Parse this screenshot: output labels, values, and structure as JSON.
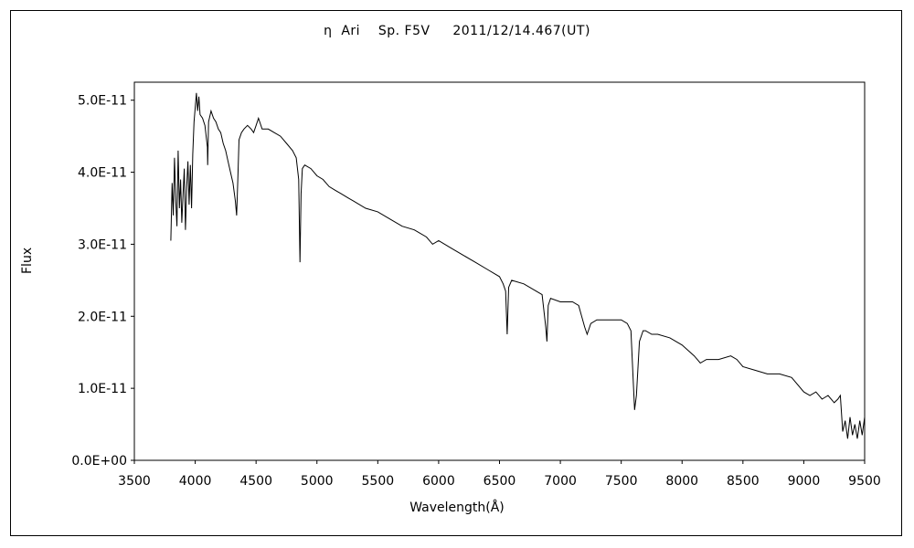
{
  "chart_data": {
    "type": "line",
    "title": "η  Ari    Sp. F5V     2011/12/14.467(UT)",
    "xlabel": "Wavelength(Å)",
    "ylabel": "Flux",
    "xlim": [
      3500,
      9500
    ],
    "ylim": [
      0,
      5.25e-11
    ],
    "x_ticks": [
      3500,
      4000,
      4500,
      5000,
      5500,
      6000,
      6500,
      7000,
      7500,
      8000,
      8500,
      9000,
      9500
    ],
    "y_ticks": [
      0,
      1e-11,
      2e-11,
      3e-11,
      4e-11,
      5e-11
    ],
    "x_tick_labels": [
      "3500",
      "4000",
      "4500",
      "5000",
      "5500",
      "6000",
      "6500",
      "7000",
      "7500",
      "8000",
      "8500",
      "9000",
      "9500"
    ],
    "y_tick_labels": [
      "0.0E+00",
      "1.0E-11",
      "2.0E-11",
      "3.0E-11",
      "4.0E-11",
      "5.0E-11"
    ],
    "grid": false,
    "legend": "none",
    "series": [
      {
        "x": [
          3800,
          3810,
          3820,
          3830,
          3840,
          3850,
          3860,
          3870,
          3880,
          3890,
          3900,
          3910,
          3920,
          3930,
          3940,
          3950,
          3960,
          3970,
          3980,
          3990,
          4000,
          4010,
          4020,
          4030,
          4040,
          4060,
          4080,
          4100,
          4102,
          4110,
          4130,
          4150,
          4170,
          4190,
          4210,
          4230,
          4250,
          4270,
          4290,
          4310,
          4330,
          4340,
          4350,
          4360,
          4380,
          4400,
          4430,
          4460,
          4480,
          4500,
          4520,
          4550,
          4600,
          4650,
          4700,
          4750,
          4800,
          4830,
          4850,
          4861,
          4870,
          4880,
          4900,
          4950,
          5000,
          5050,
          5100,
          5150,
          5200,
          5250,
          5300,
          5400,
          5500,
          5600,
          5700,
          5800,
          5900,
          5950,
          6000,
          6100,
          6200,
          6300,
          6400,
          6500,
          6530,
          6550,
          6563,
          6575,
          6600,
          6700,
          6800,
          6850,
          6880,
          6890,
          6900,
          6920,
          7000,
          7100,
          7150,
          7200,
          7220,
          7250,
          7300,
          7400,
          7500,
          7550,
          7580,
          7600,
          7610,
          7625,
          7650,
          7680,
          7700,
          7750,
          7800,
          7900,
          8000,
          8100,
          8150,
          8200,
          8300,
          8400,
          8450,
          8500,
          8600,
          8700,
          8800,
          8900,
          9000,
          9050,
          9100,
          9150,
          9200,
          9250,
          9280,
          9300,
          9320,
          9340,
          9360,
          9380,
          9400,
          9420,
          9440,
          9460,
          9480,
          9500
        ],
        "y": [
          3.05e-11,
          3.85e-11,
          3.4e-11,
          4.2e-11,
          3.6e-11,
          3.25e-11,
          4.3e-11,
          3.5e-11,
          3.9e-11,
          3.3e-11,
          3.7e-11,
          4.05e-11,
          3.2e-11,
          3.8e-11,
          4.15e-11,
          3.55e-11,
          4.1e-11,
          3.5e-11,
          4.25e-11,
          4.7e-11,
          4.9e-11,
          5.1e-11,
          4.85e-11,
          5.05e-11,
          4.8e-11,
          4.75e-11,
          4.65e-11,
          4.35e-11,
          4.1e-11,
          4.7e-11,
          4.85e-11,
          4.75e-11,
          4.7e-11,
          4.6e-11,
          4.55e-11,
          4.4e-11,
          4.3e-11,
          4.15e-11,
          4e-11,
          3.85e-11,
          3.6e-11,
          3.4e-11,
          3.9e-11,
          4.45e-11,
          4.55e-11,
          4.6e-11,
          4.65e-11,
          4.6e-11,
          4.55e-11,
          4.65e-11,
          4.75e-11,
          4.6e-11,
          4.6e-11,
          4.55e-11,
          4.5e-11,
          4.4e-11,
          4.3e-11,
          4.2e-11,
          3.9e-11,
          2.75e-11,
          3.7e-11,
          4.05e-11,
          4.1e-11,
          4.05e-11,
          3.95e-11,
          3.9e-11,
          3.8e-11,
          3.75e-11,
          3.7e-11,
          3.65e-11,
          3.6e-11,
          3.5e-11,
          3.45e-11,
          3.35e-11,
          3.25e-11,
          3.2e-11,
          3.1e-11,
          3e-11,
          3.05e-11,
          2.95e-11,
          2.85e-11,
          2.75e-11,
          2.65e-11,
          2.55e-11,
          2.45e-11,
          2.35e-11,
          1.75e-11,
          2.4e-11,
          2.5e-11,
          2.45e-11,
          2.35e-11,
          2.3e-11,
          1.85e-11,
          1.65e-11,
          2.15e-11,
          2.25e-11,
          2.2e-11,
          2.2e-11,
          2.15e-11,
          1.85e-11,
          1.75e-11,
          1.9e-11,
          1.95e-11,
          1.95e-11,
          1.95e-11,
          1.9e-11,
          1.8e-11,
          1.05e-11,
          7e-12,
          9e-12,
          1.65e-11,
          1.8e-11,
          1.8e-11,
          1.75e-11,
          1.75e-11,
          1.7e-11,
          1.6e-11,
          1.45e-11,
          1.35e-11,
          1.4e-11,
          1.4e-11,
          1.45e-11,
          1.4e-11,
          1.3e-11,
          1.25e-11,
          1.2e-11,
          1.2e-11,
          1.15e-11,
          9.5e-12,
          9e-12,
          9.5e-12,
          8.5e-12,
          9e-12,
          8e-12,
          8.5e-12,
          9e-12,
          4e-12,
          5.5e-12,
          3e-12,
          6e-12,
          3.5e-12,
          5e-12,
          3e-12,
          5.5e-12,
          3.5e-12,
          6e-12
        ]
      }
    ]
  }
}
